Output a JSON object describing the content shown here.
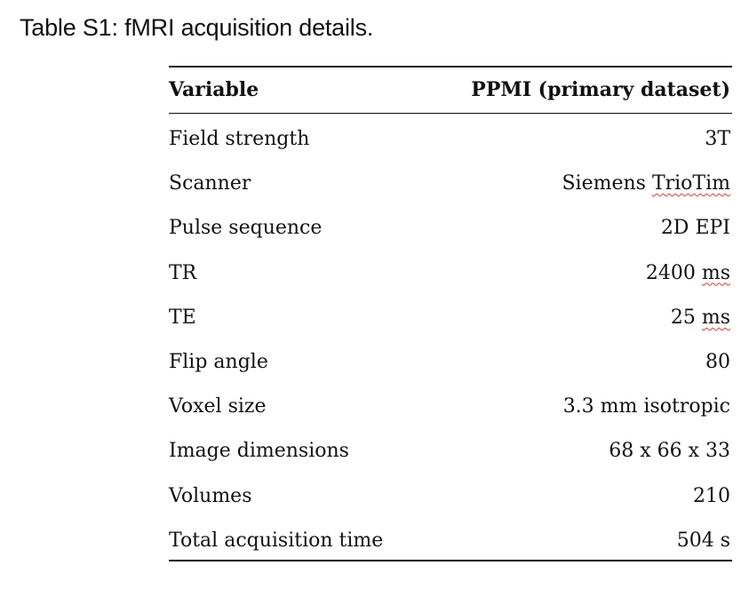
{
  "caption": "Table S1: fMRI acquisition details.",
  "table": {
    "headers": [
      "Variable",
      "PPMI (primary dataset)"
    ],
    "rows": [
      {
        "variable": "Field strength",
        "value": "3T"
      },
      {
        "variable": "Scanner",
        "value_pre": "Siemens ",
        "value_flag": "TrioTim",
        "value_post": ""
      },
      {
        "variable": "Pulse sequence",
        "value": "2D EPI"
      },
      {
        "variable": "TR",
        "value_pre": "2400 ",
        "value_flag": "ms",
        "value_post": ""
      },
      {
        "variable": "TE",
        "value_pre": "25 ",
        "value_flag": "ms",
        "value_post": ""
      },
      {
        "variable": "Flip angle",
        "value": "80"
      },
      {
        "variable": "Voxel size",
        "value": "3.3 mm isotropic"
      },
      {
        "variable": "Image dimensions",
        "value": "68 x 66 x 33"
      },
      {
        "variable": "Volumes",
        "value": "210"
      },
      {
        "variable": "Total acquisition time",
        "value": "504 s"
      }
    ]
  },
  "colors": {
    "text": "#111111",
    "spellcheck_underline": "#d0403a"
  }
}
